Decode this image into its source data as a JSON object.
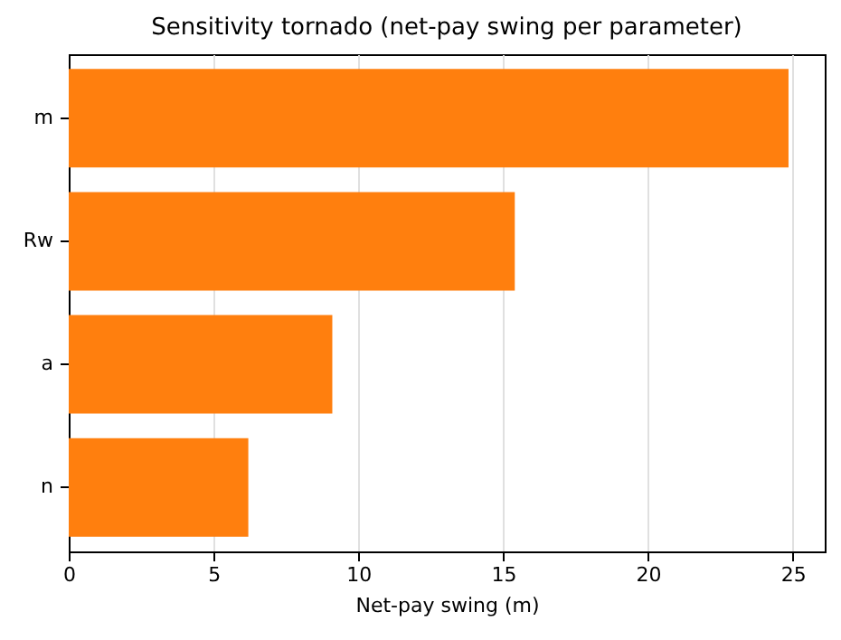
{
  "chart_data": {
    "type": "bar",
    "orientation": "horizontal",
    "title": "Sensitivity tornado (net-pay swing per parameter)",
    "xlabel": "Net-pay swing (m)",
    "categories": [
      "m",
      "Rw",
      "a",
      "n"
    ],
    "values": [
      24.85,
      15.4,
      9.1,
      6.2
    ],
    "color": "#ff7f0e",
    "xlim": [
      0,
      26.1
    ],
    "xticks": [
      0,
      5,
      10,
      15,
      20,
      25
    ],
    "grid": "x"
  }
}
